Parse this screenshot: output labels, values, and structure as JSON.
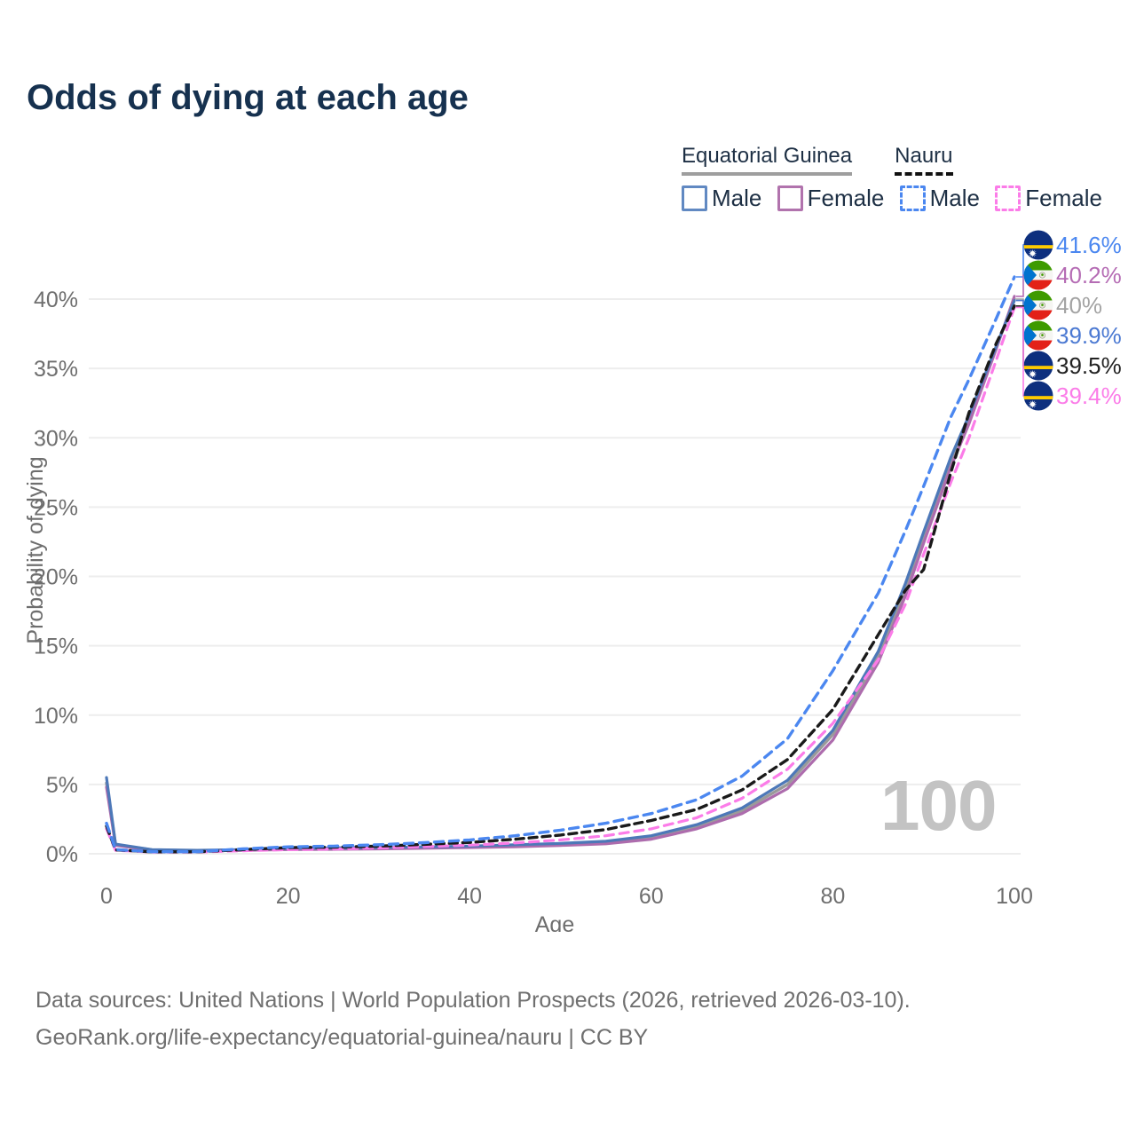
{
  "title": "Odds of dying at each age",
  "watermark": "100",
  "legend": {
    "groups": [
      {
        "label": "Equatorial Guinea",
        "style": "solid",
        "underline_color": "#9e9e9e"
      },
      {
        "label": "Nauru",
        "style": "dashed",
        "underline_color": "#111111"
      }
    ],
    "items": [
      {
        "label": "Male",
        "country": "Equatorial Guinea",
        "swatch_color": "#6189c2",
        "swatch_style": "solid"
      },
      {
        "label": "Female",
        "country": "Equatorial Guinea",
        "swatch_color": "#b173ad",
        "swatch_style": "solid"
      },
      {
        "label": "Male",
        "country": "Nauru",
        "swatch_color": "#4b87f0",
        "swatch_style": "dashed"
      },
      {
        "label": "Female",
        "country": "Nauru",
        "swatch_color": "#fb7ce8",
        "swatch_style": "dashed"
      }
    ]
  },
  "chart_data": {
    "type": "line",
    "title": "Odds of dying at each age",
    "xlabel": "Age",
    "ylabel": "Probability of dying",
    "xlim": [
      0,
      100
    ],
    "ylim": [
      0,
      44
    ],
    "grid": "horizontal-only",
    "x_ticks": [
      {
        "value": 0,
        "label": "0"
      },
      {
        "value": 20,
        "label": "20"
      },
      {
        "value": 40,
        "label": "40"
      },
      {
        "value": 60,
        "label": "60"
      },
      {
        "value": 80,
        "label": "80"
      },
      {
        "value": 100,
        "label": "100"
      }
    ],
    "y_ticks": [
      {
        "value": 0,
        "label": "0%"
      },
      {
        "value": 5,
        "label": "5%"
      },
      {
        "value": 10,
        "label": "10%"
      },
      {
        "value": 15,
        "label": "15%"
      },
      {
        "value": 20,
        "label": "20%"
      },
      {
        "value": 25,
        "label": "25%"
      },
      {
        "value": 30,
        "label": "30%"
      },
      {
        "value": 35,
        "label": "35%"
      },
      {
        "value": 40,
        "label": "40%"
      }
    ],
    "ages": [
      0,
      1,
      5,
      10,
      15,
      20,
      25,
      30,
      35,
      40,
      45,
      50,
      55,
      60,
      65,
      70,
      75,
      80,
      85,
      88,
      90,
      93,
      95,
      98,
      100
    ],
    "series": [
      {
        "id": "eg-all",
        "name": "Equatorial Guinea — Both sexes",
        "color": "#9a9a9a",
        "dash": null,
        "width": 3.4,
        "values": [
          5.1,
          0.65,
          0.28,
          0.22,
          0.28,
          0.36,
          0.38,
          0.41,
          0.46,
          0.5,
          0.58,
          0.68,
          0.82,
          1.2,
          1.95,
          3.1,
          5.0,
          8.6,
          14.2,
          19.1,
          22.8,
          28.3,
          31.3,
          36.5,
          40.0
        ]
      },
      {
        "id": "eg-female",
        "name": "Equatorial Guinea — Female",
        "color": "#ad6cad",
        "dash": null,
        "width": 3.2,
        "values": [
          4.8,
          0.6,
          0.25,
          0.2,
          0.25,
          0.3,
          0.32,
          0.35,
          0.4,
          0.45,
          0.5,
          0.6,
          0.72,
          1.05,
          1.8,
          2.9,
          4.7,
          8.2,
          13.8,
          18.6,
          22.4,
          27.9,
          31.0,
          36.4,
          40.2
        ]
      },
      {
        "id": "eg-male",
        "name": "Equatorial Guinea — Male",
        "color": "#4d78b8",
        "dash": null,
        "width": 3.2,
        "values": [
          5.5,
          0.7,
          0.3,
          0.25,
          0.3,
          0.4,
          0.42,
          0.45,
          0.5,
          0.55,
          0.65,
          0.75,
          0.9,
          1.3,
          2.1,
          3.3,
          5.3,
          8.9,
          14.6,
          19.5,
          23.2,
          28.6,
          31.6,
          36.6,
          39.9
        ]
      },
      {
        "id": "nauru-female",
        "name": "Nauru — Female",
        "color": "#fb7ce8",
        "dash": "10 7",
        "width": 3.2,
        "values": [
          1.8,
          0.25,
          0.12,
          0.12,
          0.22,
          0.3,
          0.34,
          0.42,
          0.52,
          0.62,
          0.78,
          1.0,
          1.3,
          1.8,
          2.6,
          4.0,
          6.1,
          9.4,
          14.0,
          18.0,
          21.6,
          26.8,
          30.0,
          35.6,
          39.4
        ]
      },
      {
        "id": "nauru-all",
        "name": "Nauru — Both sexes",
        "color": "#1a1a1a",
        "dash": "9 6",
        "width": 3.4,
        "values": [
          2.0,
          0.28,
          0.14,
          0.14,
          0.3,
          0.44,
          0.48,
          0.55,
          0.68,
          0.82,
          1.05,
          1.35,
          1.75,
          2.4,
          3.2,
          4.6,
          6.8,
          10.4,
          15.8,
          19.0,
          20.5,
          27.5,
          31.8,
          36.8,
          39.5
        ]
      },
      {
        "id": "nauru-male",
        "name": "Nauru — Male",
        "color": "#4b87f0",
        "dash": "10 7",
        "width": 3.4,
        "values": [
          2.2,
          0.3,
          0.15,
          0.15,
          0.35,
          0.5,
          0.55,
          0.65,
          0.8,
          1.0,
          1.3,
          1.7,
          2.2,
          2.9,
          3.9,
          5.6,
          8.3,
          13.2,
          18.8,
          23.3,
          26.5,
          31.5,
          34.2,
          38.6,
          41.6
        ]
      }
    ],
    "end_labels": [
      {
        "series": "nauru-male",
        "flag": "nauru",
        "label": "41.6%",
        "value": 41.6,
        "color": "#4b87f0"
      },
      {
        "series": "eg-female",
        "flag": "equatorial-guinea",
        "label": "40.2%",
        "value": 40.2,
        "color": "#b56cb4"
      },
      {
        "series": "eg-all",
        "flag": "equatorial-guinea",
        "label": "40%",
        "value": 40.0,
        "color": "#a3a3a3"
      },
      {
        "series": "eg-male",
        "flag": "equatorial-guinea",
        "label": "39.9%",
        "value": 39.9,
        "color": "#4b79d2"
      },
      {
        "series": "nauru-all",
        "flag": "nauru",
        "label": "39.5%",
        "value": 39.5,
        "color": "#222222"
      },
      {
        "series": "nauru-female",
        "flag": "nauru",
        "label": "39.4%",
        "value": 39.4,
        "color": "#fb7ce8"
      }
    ],
    "legend_position": "top-right"
  },
  "footer": {
    "line1": "Data sources: United Nations | World Population Prospects (2026, retrieved 2026-03-10).",
    "line2": "GeoRank.org/life-expectancy/equatorial-guinea/nauru | CC BY"
  }
}
